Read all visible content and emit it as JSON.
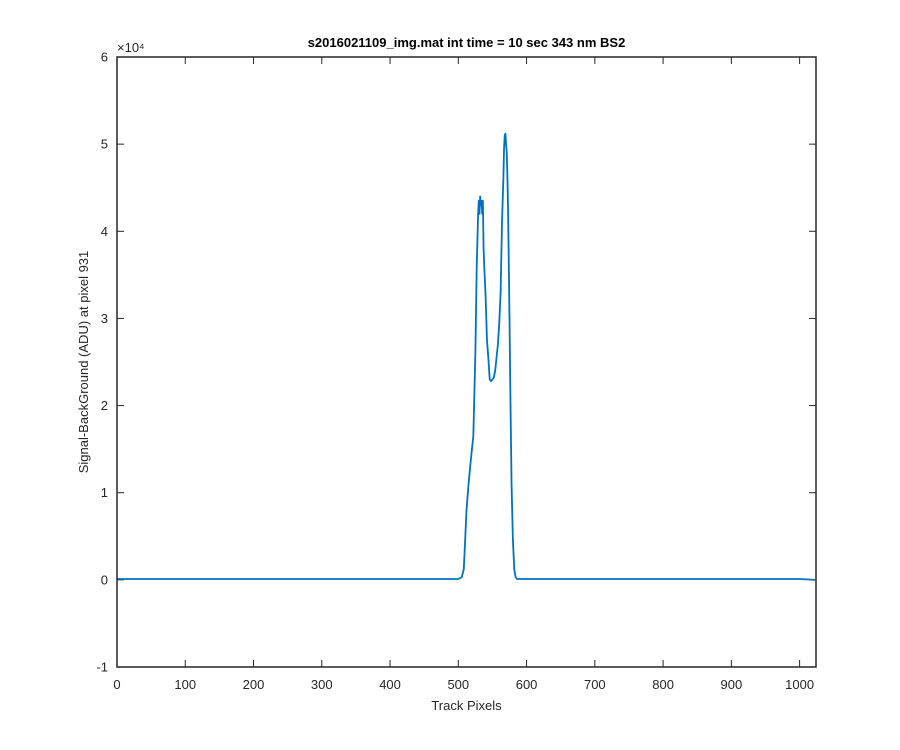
{
  "chart_data": {
    "type": "line",
    "title": "s2016021109_img.mat int time = 10 sec  343 nm BS2",
    "xlabel": "Track Pixels",
    "ylabel": "Signal-BackGround (ADU) at pixel 931",
    "y_exponent_label": "×10⁴",
    "y_scale_factor": 10000,
    "xlim": [
      0,
      1024
    ],
    "ylim": [
      -1,
      6
    ],
    "xticks": [
      0,
      100,
      200,
      300,
      400,
      500,
      600,
      700,
      800,
      900,
      1000
    ],
    "yticks": [
      -1,
      0,
      1,
      2,
      3,
      4,
      5,
      6
    ],
    "xtick_labels": [
      "0",
      "100",
      "200",
      "300",
      "400",
      "500",
      "600",
      "700",
      "800",
      "900",
      "1000"
    ],
    "ytick_labels": [
      "-1",
      "0",
      "1",
      "2",
      "3",
      "4",
      "5",
      "6"
    ],
    "grid": false,
    "series": [
      {
        "color": "#0072BD",
        "x": [
          0,
          50,
          100,
          200,
          300,
          400,
          480,
          500,
          505,
          508,
          510,
          512,
          515,
          518,
          520,
          522,
          525,
          527,
          528,
          529,
          530,
          531,
          532,
          533,
          534,
          535,
          536,
          537,
          538,
          540,
          542,
          544,
          546,
          548,
          550,
          552,
          554,
          556,
          558,
          560,
          562,
          564,
          566,
          567,
          568,
          569,
          570,
          571,
          572,
          573,
          574,
          575,
          576,
          577,
          578,
          580,
          582,
          584,
          586,
          590,
          600,
          700,
          800,
          900,
          1000,
          1024
        ],
        "y": [
          0.01,
          0.01,
          0.01,
          0.01,
          0.01,
          0.01,
          0.01,
          0.01,
          0.03,
          0.12,
          0.45,
          0.8,
          1.1,
          1.35,
          1.5,
          1.65,
          2.6,
          3.6,
          3.9,
          4.2,
          4.35,
          4.2,
          4.4,
          4.3,
          4.35,
          4.2,
          4.35,
          3.8,
          3.6,
          3.25,
          2.75,
          2.55,
          2.3,
          2.28,
          2.3,
          2.32,
          2.4,
          2.55,
          2.7,
          2.95,
          3.3,
          4.1,
          4.6,
          4.95,
          5.1,
          5.12,
          5.0,
          4.9,
          4.6,
          4.2,
          3.6,
          3.0,
          2.3,
          1.7,
          1.1,
          0.45,
          0.12,
          0.03,
          0.01,
          0.01,
          0.01,
          0.01,
          0.01,
          0.01,
          0.01,
          0.0
        ]
      }
    ]
  }
}
